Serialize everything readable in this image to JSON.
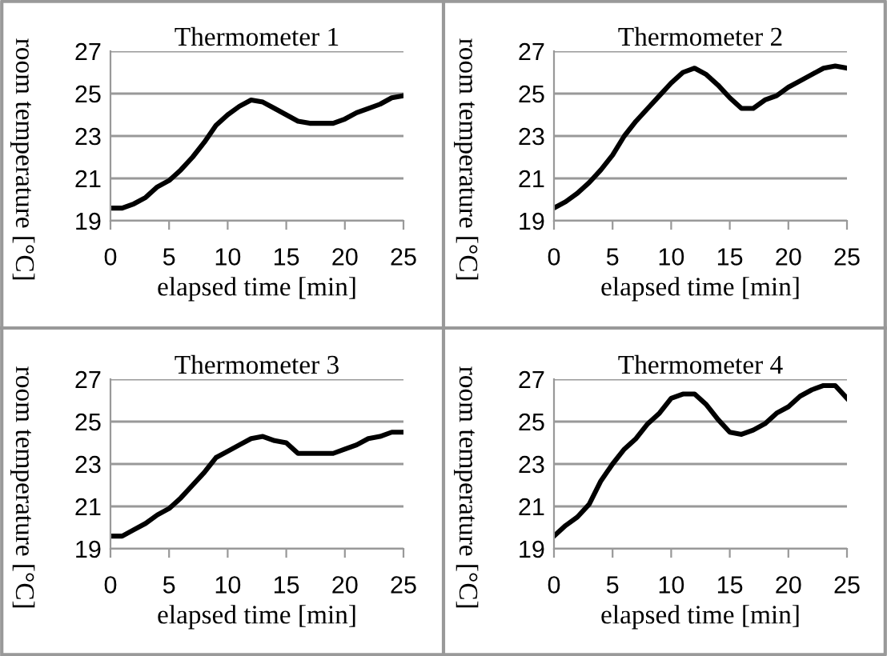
{
  "chart_data": [
    {
      "type": "line",
      "title": "Thermometer 1",
      "xlabel": "elapsed time [min]",
      "ylabel": "room temperature [°C]",
      "x": [
        0,
        1,
        2,
        3,
        4,
        5,
        6,
        7,
        8,
        9,
        10,
        11,
        12,
        13,
        14,
        15,
        16,
        17,
        18,
        19,
        20,
        21,
        22,
        23,
        24,
        25
      ],
      "series": [
        {
          "color": "#000000",
          "values": [
            19.6,
            19.6,
            19.8,
            20.1,
            20.6,
            20.9,
            21.4,
            22.0,
            22.7,
            23.5,
            24.0,
            24.4,
            24.7,
            24.6,
            24.3,
            24.0,
            23.7,
            23.6,
            23.6,
            23.6,
            23.8,
            24.1,
            24.3,
            24.5,
            24.8,
            24.9
          ]
        }
      ],
      "xlim": [
        0,
        25
      ],
      "xticks": [
        0,
        5,
        10,
        15,
        20,
        25
      ],
      "ylim": [
        19,
        27
      ],
      "yticks": [
        19,
        21,
        23,
        25,
        27
      ],
      "grid": "y"
    },
    {
      "type": "line",
      "title": "Thermometer 2",
      "xlabel": "elapsed time [min]",
      "ylabel": "room temperature [°C]",
      "x": [
        0,
        1,
        2,
        3,
        4,
        5,
        6,
        7,
        8,
        9,
        10,
        11,
        12,
        13,
        14,
        15,
        16,
        17,
        18,
        19,
        20,
        21,
        22,
        23,
        24,
        25
      ],
      "series": [
        {
          "color": "#000000",
          "values": [
            19.6,
            19.9,
            20.3,
            20.8,
            21.4,
            22.1,
            23.0,
            23.7,
            24.3,
            24.9,
            25.5,
            26.0,
            26.2,
            25.9,
            25.4,
            24.8,
            24.3,
            24.3,
            24.7,
            24.9,
            25.3,
            25.6,
            25.9,
            26.2,
            26.3,
            26.2
          ]
        }
      ],
      "xlim": [
        0,
        25
      ],
      "xticks": [
        0,
        5,
        10,
        15,
        20,
        25
      ],
      "ylim": [
        19,
        27
      ],
      "yticks": [
        19,
        21,
        23,
        25,
        27
      ],
      "grid": "y"
    },
    {
      "type": "line",
      "title": "Thermometer 3",
      "xlabel": "elapsed time [min]",
      "ylabel": "room temperature [°C]",
      "x": [
        0,
        1,
        2,
        3,
        4,
        5,
        6,
        7,
        8,
        9,
        10,
        11,
        12,
        13,
        14,
        15,
        16,
        17,
        18,
        19,
        20,
        21,
        22,
        23,
        24,
        25
      ],
      "series": [
        {
          "color": "#000000",
          "values": [
            19.6,
            19.6,
            19.9,
            20.2,
            20.6,
            20.9,
            21.4,
            22.0,
            22.6,
            23.3,
            23.6,
            23.9,
            24.2,
            24.3,
            24.1,
            24.0,
            23.5,
            23.5,
            23.5,
            23.5,
            23.7,
            23.9,
            24.2,
            24.3,
            24.5,
            24.5
          ]
        }
      ],
      "xlim": [
        0,
        25
      ],
      "xticks": [
        0,
        5,
        10,
        15,
        20,
        25
      ],
      "ylim": [
        19,
        27
      ],
      "yticks": [
        19,
        21,
        23,
        25,
        27
      ],
      "grid": "y"
    },
    {
      "type": "line",
      "title": "Thermometer 4",
      "xlabel": "elapsed time [min]",
      "ylabel": "room temperature [°C]",
      "x": [
        0,
        1,
        2,
        3,
        4,
        5,
        6,
        7,
        8,
        9,
        10,
        11,
        12,
        13,
        14,
        15,
        16,
        17,
        18,
        19,
        20,
        21,
        22,
        23,
        24,
        25
      ],
      "series": [
        {
          "color": "#000000",
          "values": [
            19.6,
            20.1,
            20.5,
            21.1,
            22.2,
            23.0,
            23.7,
            24.2,
            24.9,
            25.4,
            26.1,
            26.3,
            26.3,
            25.8,
            25.1,
            24.5,
            24.4,
            24.6,
            24.9,
            25.4,
            25.7,
            26.2,
            26.5,
            26.7,
            26.7,
            26.1
          ]
        }
      ],
      "xlim": [
        0,
        25
      ],
      "xticks": [
        0,
        5,
        10,
        15,
        20,
        25
      ],
      "ylim": [
        19,
        27
      ],
      "yticks": [
        19,
        21,
        23,
        25,
        27
      ],
      "grid": "y"
    }
  ]
}
